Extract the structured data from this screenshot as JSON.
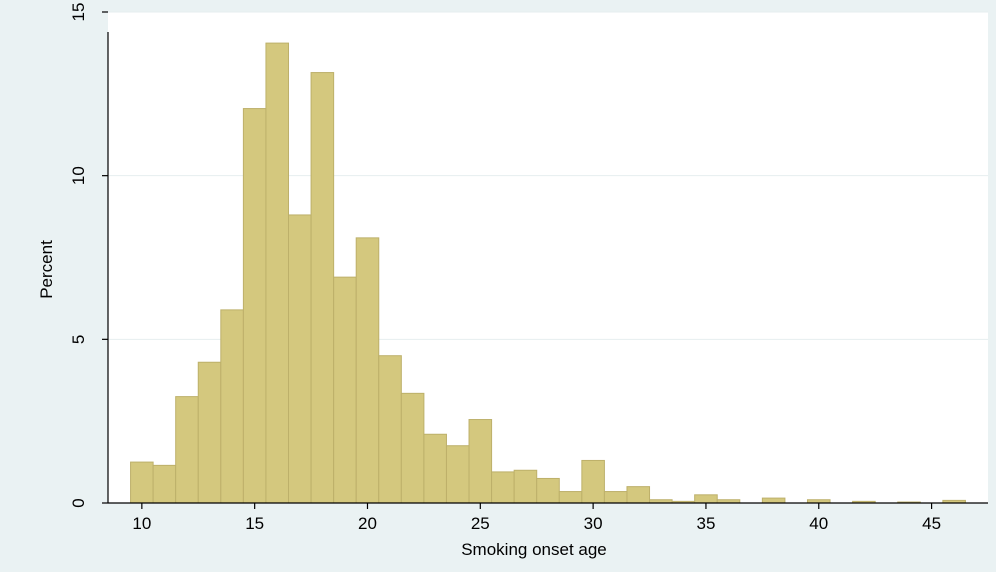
{
  "chart_data": {
    "type": "bar",
    "xlabel": "Smoking onset age",
    "ylabel": "Percent",
    "xlim": [
      8.5,
      47.5
    ],
    "ylim": [
      0,
      15
    ],
    "xticks": [
      10,
      15,
      20,
      25,
      30,
      35,
      40,
      45
    ],
    "yticks": [
      0,
      5,
      10,
      15
    ],
    "bin_width": 1,
    "bars": [
      {
        "x": 10,
        "value": 1.25
      },
      {
        "x": 11,
        "value": 1.15
      },
      {
        "x": 12,
        "value": 3.25
      },
      {
        "x": 13,
        "value": 4.3
      },
      {
        "x": 14,
        "value": 5.9
      },
      {
        "x": 15,
        "value": 12.05
      },
      {
        "x": 16,
        "value": 14.05
      },
      {
        "x": 17,
        "value": 8.8
      },
      {
        "x": 18,
        "value": 13.15
      },
      {
        "x": 19,
        "value": 6.9
      },
      {
        "x": 20,
        "value": 8.1
      },
      {
        "x": 21,
        "value": 4.5
      },
      {
        "x": 22,
        "value": 3.35
      },
      {
        "x": 23,
        "value": 2.1
      },
      {
        "x": 24,
        "value": 1.75
      },
      {
        "x": 25,
        "value": 2.55
      },
      {
        "x": 26,
        "value": 0.95
      },
      {
        "x": 27,
        "value": 1.0
      },
      {
        "x": 28,
        "value": 0.75
      },
      {
        "x": 29,
        "value": 0.35
      },
      {
        "x": 30,
        "value": 1.3
      },
      {
        "x": 31,
        "value": 0.35
      },
      {
        "x": 32,
        "value": 0.5
      },
      {
        "x": 33,
        "value": 0.1
      },
      {
        "x": 34,
        "value": 0.05
      },
      {
        "x": 35,
        "value": 0.25
      },
      {
        "x": 36,
        "value": 0.1
      },
      {
        "x": 38,
        "value": 0.15
      },
      {
        "x": 40,
        "value": 0.1
      },
      {
        "x": 42,
        "value": 0.05
      },
      {
        "x": 44,
        "value": 0.03
      },
      {
        "x": 46,
        "value": 0.08
      }
    ],
    "grid": true,
    "colors": {
      "outer_background": "#eaf2f3",
      "plot_background": "#ffffff",
      "bar_fill": "#d4c87e",
      "bar_stroke": "#bdb06a",
      "gridline": "#e6eeef",
      "axis": "#000000"
    }
  }
}
